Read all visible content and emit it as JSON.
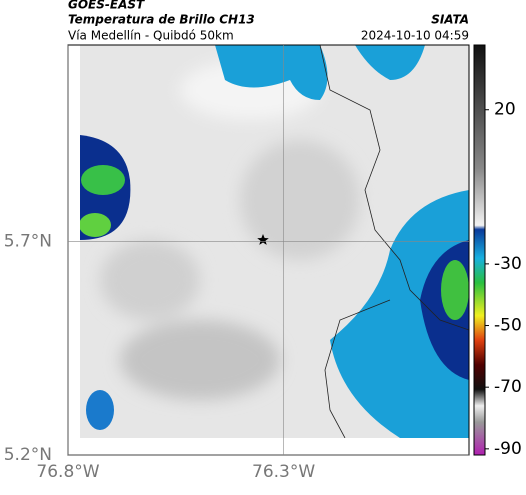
{
  "header": {
    "source": "GOES-EAST",
    "title": "Temperatura de Brillo CH13",
    "subtitle": "Vía Medellín - Quibdó 50km",
    "agency": "SIATA",
    "timestamp": "2024-10-10 04:59"
  },
  "map": {
    "xlim": [
      -76.8,
      -75.87
    ],
    "ylim": [
      5.2,
      6.16
    ],
    "xticks": [
      {
        "value": -76.8,
        "label": "76.8°W"
      },
      {
        "value": -76.3,
        "label": "76.3°W"
      }
    ],
    "yticks": [
      {
        "value": 5.7,
        "label": "5.7°N"
      },
      {
        "value": 5.2,
        "label": "5.2°N"
      }
    ],
    "colorbar": {
      "clim": [
        -92,
        41
      ],
      "ticks": [
        20,
        -30,
        -50,
        -70,
        -90
      ]
    }
  }
}
